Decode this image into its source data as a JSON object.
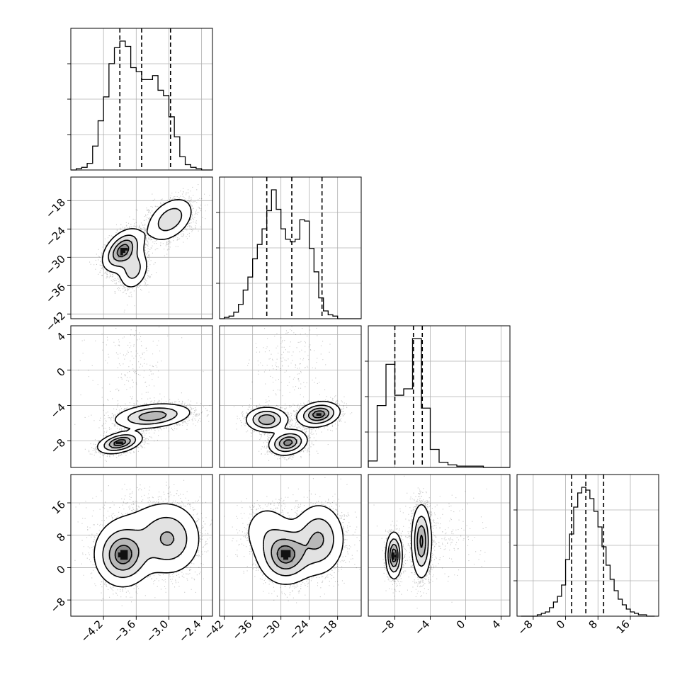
{
  "chart_data": {
    "type": "scatter",
    "subtype": "corner-plot",
    "grid": true,
    "parameters": [
      {
        "range": [
          -4.8,
          -2.2
        ],
        "ticks": [
          -4.2,
          -3.6,
          -3.0,
          -2.4
        ],
        "tick_labels": [
          "−4.2",
          "−3.6",
          "−3.0",
          "−2.4"
        ]
      },
      {
        "range": [
          -43,
          -13
        ],
        "ticks": [
          -42,
          -36,
          -30,
          -24,
          -18
        ],
        "tick_labels": [
          "−42",
          "−36",
          "−30",
          "−24",
          "−18"
        ]
      },
      {
        "range": [
          -11,
          5
        ],
        "ticks": [
          -8,
          -4,
          0,
          4
        ],
        "tick_labels": [
          "−8",
          "−4",
          "0",
          "4"
        ]
      },
      {
        "range": [
          -12,
          23
        ],
        "ticks": [
          -8,
          0,
          8,
          16
        ],
        "tick_labels": [
          "−8",
          "0",
          "8",
          "16"
        ]
      }
    ],
    "histograms": [
      {
        "bins": [
          -4.75,
          -4.65,
          -4.55,
          -4.45,
          -4.35,
          -4.25,
          -4.15,
          -4.05,
          -3.95,
          -3.85,
          -3.75,
          -3.65,
          -3.55,
          -3.45,
          -3.35,
          -3.25,
          -3.15,
          -3.05,
          -2.95,
          -2.85,
          -2.75,
          -2.65,
          -2.55,
          -2.45,
          -2.35,
          -2.25
        ],
        "counts": [
          0.0,
          0.01,
          0.02,
          0.05,
          0.18,
          0.37,
          0.55,
          0.8,
          0.92,
          0.97,
          0.93,
          0.77,
          0.74,
          0.68,
          0.68,
          0.71,
          0.6,
          0.56,
          0.4,
          0.25,
          0.1,
          0.04,
          0.02,
          0.01,
          0.0,
          0.0
        ],
        "quantiles": [
          -3.9,
          -3.5,
          -2.97
        ]
      },
      {
        "bins": [
          -42.5,
          -41.5,
          -40.5,
          -39.5,
          -38.5,
          -37.5,
          -36.5,
          -35.5,
          -34.5,
          -33.5,
          -32.5,
          -31.5,
          -30.5,
          -29.5,
          -28.5,
          -27.5,
          -26.5,
          -25.5,
          -24.5,
          -23.5,
          -22.5,
          -21.5,
          -20.5,
          -19.5,
          -18.5,
          -17.5,
          -16.5,
          -15.5,
          -14.5,
          -13.5
        ],
        "counts": [
          0.0,
          0.01,
          0.02,
          0.05,
          0.11,
          0.22,
          0.32,
          0.46,
          0.57,
          0.69,
          0.83,
          0.99,
          0.84,
          0.69,
          0.61,
          0.59,
          0.61,
          0.76,
          0.75,
          0.54,
          0.36,
          0.16,
          0.06,
          0.03,
          0.02,
          0.0,
          0.0,
          0.0,
          0.0,
          0.0
        ],
        "quantiles": [
          -33.0,
          -27.7,
          -21.3
        ]
      },
      {
        "bins": [
          -10.5,
          -9.5,
          -8.5,
          -7.5,
          -6.5,
          -5.5,
          -4.5,
          -3.5,
          -2.5,
          -1.5,
          -0.5,
          0.5,
          1.5,
          2.5,
          3.5,
          4.5
        ],
        "counts": [
          0.05,
          0.48,
          0.8,
          0.56,
          0.61,
          1.0,
          0.46,
          0.14,
          0.04,
          0.02,
          0.01,
          0.01,
          0.01,
          0.0,
          0.0,
          0.0
        ],
        "quantiles": [
          -8.0,
          -5.9,
          -4.9
        ]
      },
      {
        "bins": [
          -10.5,
          -9.5,
          -8.5,
          -7.5,
          -6.5,
          -5.5,
          -4.5,
          -3.5,
          -2.5,
          -1.5,
          -0.5,
          0.5,
          1.5,
          2.5,
          3.5,
          4.5,
          5.5,
          6.5,
          7.5,
          8.5,
          9.5,
          10.5,
          11.5,
          12.5,
          13.5,
          14.5,
          15.5,
          16.5,
          17.5,
          18.5,
          19.5,
          20.5,
          21.5
        ],
        "counts": [
          0.0,
          0.0,
          0.0,
          0.0,
          0.01,
          0.02,
          0.03,
          0.06,
          0.1,
          0.14,
          0.22,
          0.4,
          0.58,
          0.77,
          0.87,
          0.91,
          0.89,
          0.83,
          0.74,
          0.63,
          0.49,
          0.36,
          0.26,
          0.18,
          0.12,
          0.08,
          0.05,
          0.03,
          0.02,
          0.01,
          0.01,
          0.0,
          0.0
        ],
        "quantiles": [
          1.5,
          5.0,
          9.4
        ]
      }
    ],
    "joint": [
      {
        "row": 1,
        "col": 0,
        "modes": [
          {
            "x": -3.85,
            "y": -28.5,
            "sx": 0.18,
            "sy": 2.2,
            "rho": 0.45,
            "w": 0.45
          },
          {
            "x": -3.65,
            "y": -32.5,
            "sx": 0.14,
            "sy": 2.2,
            "rho": 0.2,
            "w": 0.2
          },
          {
            "x": -2.98,
            "y": -22.0,
            "sx": 0.22,
            "sy": 2.4,
            "rho": 0.4,
            "w": 0.35
          }
        ]
      },
      {
        "row": 2,
        "col": 0,
        "modes": [
          {
            "x": -3.9,
            "y": -8.2,
            "sx": 0.2,
            "sy": 0.6,
            "rho": 0.4,
            "w": 0.35
          },
          {
            "x": -3.3,
            "y": -5.2,
            "sx": 0.35,
            "sy": 0.7,
            "rho": 0.3,
            "w": 0.6
          },
          {
            "x": -3.7,
            "y": 1.0,
            "sx": 0.35,
            "sy": 3.0,
            "rho": 0.0,
            "w": 0.05
          }
        ]
      },
      {
        "row": 2,
        "col": 1,
        "modes": [
          {
            "x": -28.5,
            "y": -8.2,
            "sx": 2.0,
            "sy": 0.7,
            "rho": 0.2,
            "w": 0.3
          },
          {
            "x": -33.0,
            "y": -5.6,
            "sx": 2.2,
            "sy": 0.7,
            "rho": 0.0,
            "w": 0.3
          },
          {
            "x": -22.0,
            "y": -5.0,
            "sx": 2.2,
            "sy": 0.7,
            "rho": 0.2,
            "w": 0.35
          },
          {
            "x": -28.0,
            "y": 1.0,
            "sx": 4.0,
            "sy": 3.0,
            "rho": 0.0,
            "w": 0.05
          }
        ]
      },
      {
        "row": 3,
        "col": 0,
        "modes": [
          {
            "x": -3.85,
            "y": 3.0,
            "sx": 0.25,
            "sy": 3.8,
            "rho": 0.0,
            "w": 0.45
          },
          {
            "x": -3.0,
            "y": 7.0,
            "sx": 0.3,
            "sy": 4.5,
            "rho": 0.0,
            "w": 0.4
          },
          {
            "x": -3.5,
            "y": 9.0,
            "sx": 0.45,
            "sy": 5.0,
            "rho": 0.0,
            "w": 0.15
          }
        ]
      },
      {
        "row": 3,
        "col": 1,
        "modes": [
          {
            "x": -29.0,
            "y": 3.0,
            "sx": 2.8,
            "sy": 3.5,
            "rho": 0.0,
            "w": 0.45
          },
          {
            "x": -22.0,
            "y": 7.0,
            "sx": 2.8,
            "sy": 4.5,
            "rho": 0.0,
            "w": 0.4
          },
          {
            "x": -33.0,
            "y": 9.0,
            "sx": 3.0,
            "sy": 4.0,
            "rho": 0.0,
            "w": 0.15
          }
        ]
      },
      {
        "row": 3,
        "col": 2,
        "modes": [
          {
            "x": -8.1,
            "y": 3.0,
            "sx": 0.45,
            "sy": 2.8,
            "rho": 0.0,
            "w": 0.35
          },
          {
            "x": -5.0,
            "y": 6.5,
            "sx": 0.55,
            "sy": 4.5,
            "rho": 0.0,
            "w": 0.6
          },
          {
            "x": -3.0,
            "y": 8.0,
            "sx": 2.5,
            "sy": 5.0,
            "rho": 0.0,
            "w": 0.05
          }
        ]
      }
    ]
  }
}
